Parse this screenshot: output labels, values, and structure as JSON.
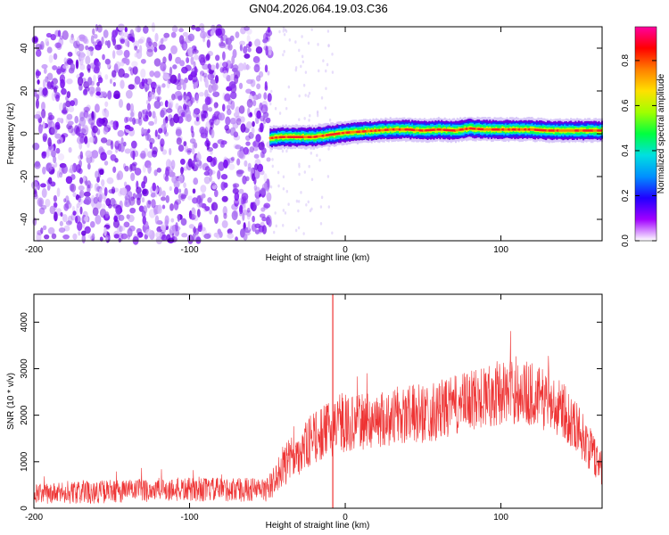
{
  "title": "GN04.2026.064.19.03.C36",
  "chart_data": [
    {
      "type": "heatmap",
      "xlabel": "Height of straight line (km)",
      "ylabel": "Frequency (Hz)",
      "xlim": [
        -200,
        165
      ],
      "ylim": [
        -50,
        50
      ],
      "x_ticks": [
        -200,
        -100,
        0,
        100
      ],
      "y_ticks": [
        -40,
        -20,
        0,
        20,
        40
      ],
      "colorbar": {
        "label": "Normalized spectral amplitude",
        "range": [
          0,
          0.95
        ],
        "ticks": [
          "0.0",
          "0.2",
          "0.4",
          "0.6",
          "0.8"
        ],
        "colors": [
          "#ffffff",
          "#a000ff",
          "#2000ff",
          "#0090ff",
          "#00e0e0",
          "#00ff40",
          "#a0ff00",
          "#ffe000",
          "#ff8000",
          "#ff0000",
          "#ff00a0"
        ]
      },
      "noise_region_x": [
        -200,
        -48
      ],
      "trace": {
        "x": [
          -48,
          -40,
          -30,
          -20,
          -10,
          0,
          10,
          20,
          30,
          40,
          50,
          60,
          70,
          80,
          90,
          100,
          110,
          120,
          130,
          140,
          150,
          165
        ],
        "freq": [
          -2,
          -1.5,
          -1.5,
          -1.5,
          -0.5,
          0.5,
          1,
          1.5,
          2,
          2,
          1.5,
          2,
          1.5,
          2.5,
          2,
          2,
          2,
          2,
          1.5,
          1.5,
          1.5,
          1.5
        ]
      }
    },
    {
      "type": "line",
      "xlabel": "Height of straight line (km)",
      "ylabel": "SNR (10 * v/v)",
      "xlim": [
        -200,
        165
      ],
      "ylim": [
        0,
        4600
      ],
      "x_ticks": [
        -200,
        -100,
        0,
        100
      ],
      "y_ticks": [
        0,
        1000,
        2000,
        3000,
        4000
      ],
      "color": "#ee3333",
      "envelope": {
        "x": [
          -200,
          -160,
          -120,
          -80,
          -50,
          -45,
          -40,
          -30,
          -20,
          -10,
          0,
          20,
          40,
          60,
          80,
          90,
          100,
          110,
          120,
          130,
          140,
          150,
          160,
          165
        ],
        "mean": [
          300,
          350,
          400,
          400,
          400,
          600,
          900,
          1200,
          1500,
          1700,
          1800,
          1900,
          2000,
          2100,
          2300,
          2400,
          2500,
          2500,
          2450,
          2300,
          2100,
          1700,
          1100,
          900
        ],
        "spread": [
          220,
          250,
          260,
          260,
          260,
          350,
          450,
          500,
          550,
          600,
          600,
          600,
          650,
          650,
          650,
          700,
          700,
          700,
          700,
          650,
          600,
          550,
          450,
          400
        ]
      },
      "spike": {
        "x": -8,
        "y": 4600
      }
    }
  ]
}
